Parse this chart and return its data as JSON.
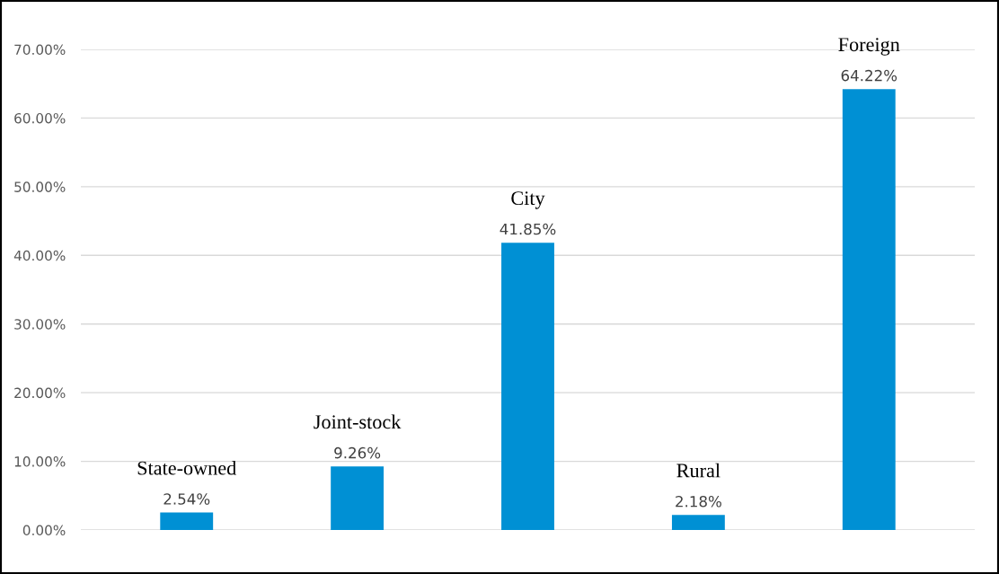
{
  "chart_data": {
    "type": "bar",
    "categories": [
      "State-owned",
      "Joint-stock",
      "City",
      "Rural",
      "Foreign"
    ],
    "values": [
      2.54,
      9.26,
      41.85,
      2.18,
      64.22
    ],
    "value_labels": [
      "2.54%",
      "9.26%",
      "41.85%",
      "2.18%",
      "64.22%"
    ],
    "color": "#0090d4",
    "ylim": [
      0,
      70
    ],
    "yticks": [
      {
        "value": 0,
        "label": "0.00%"
      },
      {
        "value": 10,
        "label": "10.00%"
      },
      {
        "value": 20,
        "label": "20.00%"
      },
      {
        "value": 30,
        "label": "30.00%"
      },
      {
        "value": 40,
        "label": "40.00%"
      },
      {
        "value": 50,
        "label": "50.00%"
      },
      {
        "value": 60,
        "label": "60.00%"
      },
      {
        "value": 70,
        "label": "70.00%"
      }
    ],
    "grid": "y",
    "legend": false
  }
}
